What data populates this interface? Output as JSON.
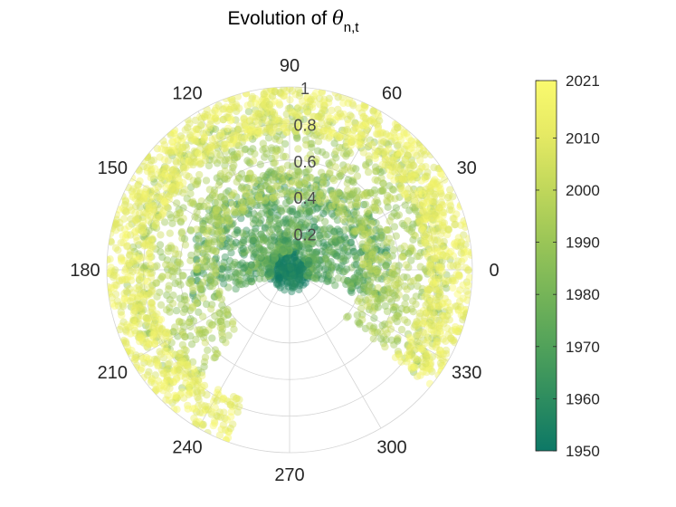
{
  "chart_data": {
    "type": "scatter",
    "coordinate_system": "polar",
    "title": {
      "prefix": "Evolution of ",
      "symbol": "θ",
      "subscript": "n,t"
    },
    "theta_unit": "degrees",
    "theta_ticks": [
      "0",
      "30",
      "60",
      "90",
      "120",
      "150",
      "180",
      "210",
      "240",
      "270",
      "300",
      "330"
    ],
    "r_range": [
      0,
      1
    ],
    "r_ticks": [
      "0.2",
      "0.4",
      "0.6",
      "0.8",
      "1"
    ],
    "grid": true,
    "color_variable": "year",
    "colorbar": {
      "range": [
        1950,
        2021
      ],
      "ticks": [
        "1950",
        "1960",
        "1970",
        "1980",
        "1990",
        "2000",
        "2010",
        "2021"
      ],
      "colormap": [
        "#0d7866",
        "#2e8d5f",
        "#52a25a",
        "#77b558",
        "#9cc657",
        "#c2d85b",
        "#e6ea64",
        "#fafa6e"
      ],
      "placement": "right"
    },
    "marker": {
      "shape": "circle",
      "opacity": 0.45
    },
    "series": [
      {
        "year_range": [
          1950,
          1960
        ],
        "theta_range_deg": [
          0,
          360
        ],
        "r_range": [
          0.0,
          0.12
        ]
      },
      {
        "year_range": [
          1960,
          1985
        ],
        "theta_range_deg": [
          -20,
          200
        ],
        "r_range": [
          0.1,
          0.55
        ]
      },
      {
        "year_range": [
          1985,
          2005
        ],
        "theta_range_deg": [
          -40,
          230
        ],
        "r_range": [
          0.4,
          0.9
        ]
      },
      {
        "year_range": [
          2005,
          2021
        ],
        "theta_range_deg": [
          -40,
          250
        ],
        "r_range": [
          0.75,
          1.0
        ]
      }
    ]
  }
}
